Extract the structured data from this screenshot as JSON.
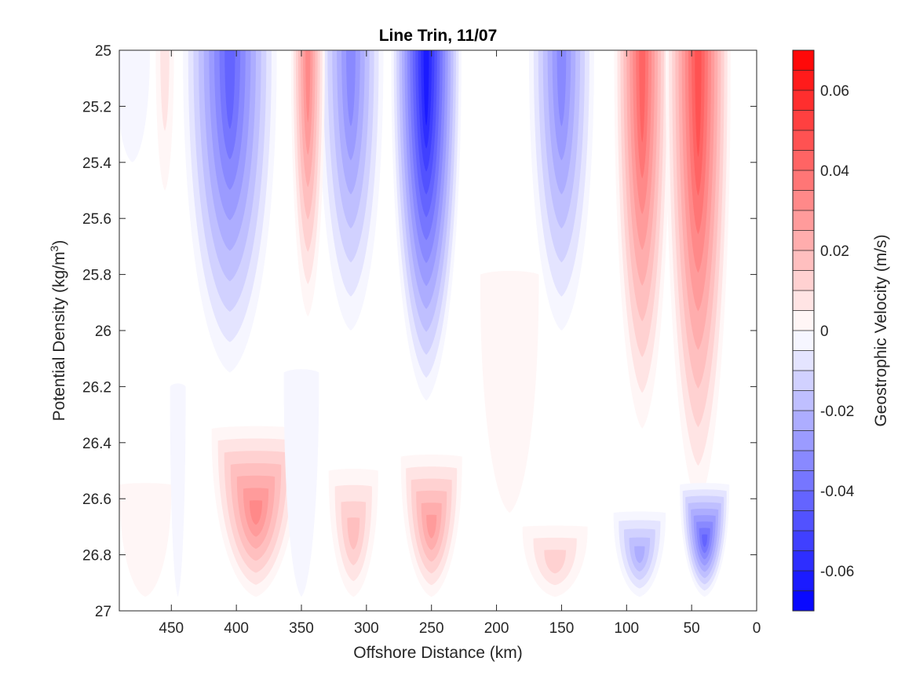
{
  "chart_data": {
    "type": "heatmap",
    "title": "Line Trin, 11/07",
    "xlabel": "Offshore Distance (km)",
    "ylabel": "Potential Density (kg/m",
    "ylabel_superscript": "3",
    "ylabel_suffix": ")",
    "xlim": [
      490,
      0
    ],
    "ylim": [
      25,
      27
    ],
    "x_reversed": true,
    "y_reversed": true,
    "x_ticks": [
      450,
      400,
      350,
      300,
      250,
      200,
      150,
      100,
      50,
      0
    ],
    "x_tick_labels": [
      "450",
      "400",
      "350",
      "300",
      "250",
      "200",
      "150",
      "100",
      "50",
      "0"
    ],
    "y_ticks": [
      25,
      25.2,
      25.4,
      25.6,
      25.8,
      26,
      26.2,
      26.4,
      26.6,
      26.8,
      27
    ],
    "y_tick_labels": [
      "25",
      "25.2",
      "25.4",
      "25.6",
      "25.8",
      "26",
      "26.2",
      "26.4",
      "26.6",
      "26.8",
      "27"
    ],
    "colorbar": {
      "label": "Geostrophic Velocity (m/s)",
      "range": [
        -0.07,
        0.07
      ],
      "levels": 28,
      "ticks": [
        0.06,
        0.04,
        0.02,
        0,
        -0.02,
        -0.04,
        -0.06
      ],
      "tick_labels": [
        "0.06",
        "0.04",
        "0.02",
        "0",
        "-0.02",
        "-0.04",
        "-0.06"
      ],
      "low_color": "#0000ff",
      "mid_color": "#ffffff",
      "high_color": "#ff0000"
    },
    "features": [
      {
        "x": 254,
        "x_left": 272,
        "x_right": 218,
        "y_top": 25.0,
        "y_bottom": 26.25,
        "peak": -0.065
      },
      {
        "x": 405,
        "x_left": 440,
        "x_right": 368,
        "y_top": 25.0,
        "y_bottom": 26.15,
        "peak": -0.045
      },
      {
        "x": 312,
        "x_left": 338,
        "x_right": 288,
        "y_top": 25.0,
        "y_bottom": 26.0,
        "peak": -0.035
      },
      {
        "x": 150,
        "x_left": 175,
        "x_right": 125,
        "y_top": 25.0,
        "y_bottom": 26.0,
        "peak": -0.035
      },
      {
        "x": 480,
        "x_left": 492,
        "x_right": 465,
        "y_top": 25.0,
        "y_bottom": 25.4,
        "peak": -0.008
      },
      {
        "x": 345,
        "x_left": 358,
        "x_right": 332,
        "y_top": 25.0,
        "y_bottom": 25.95,
        "peak": 0.035
      },
      {
        "x": 88,
        "x_left": 115,
        "x_right": 72,
        "y_top": 25.0,
        "y_bottom": 26.35,
        "peak": 0.045
      },
      {
        "x": 45,
        "x_left": 72,
        "x_right": 22,
        "y_top": 25.0,
        "y_bottom": 26.62,
        "peak": 0.05
      },
      {
        "x": 455,
        "x_left": 462,
        "x_right": 448,
        "y_top": 25.0,
        "y_bottom": 25.5,
        "peak": 0.01
      },
      {
        "x": 385,
        "x_left": 430,
        "x_right": 362,
        "y_top": 26.35,
        "y_bottom": 26.95,
        "peak": 0.035
      },
      {
        "x": 250,
        "x_left": 272,
        "x_right": 225,
        "y_top": 26.45,
        "y_bottom": 26.95,
        "peak": 0.03
      },
      {
        "x": 310,
        "x_left": 330,
        "x_right": 292,
        "y_top": 26.5,
        "y_bottom": 26.95,
        "peak": 0.02
      },
      {
        "x": 155,
        "x_left": 175,
        "x_right": 125,
        "y_top": 26.7,
        "y_bottom": 26.95,
        "peak": 0.015
      },
      {
        "x": 190,
        "x_left": 210,
        "x_right": 165,
        "y_top": 25.8,
        "y_bottom": 26.65,
        "peak": 0.008
      },
      {
        "x": 40,
        "x_left": 60,
        "x_right": 22,
        "y_top": 26.55,
        "y_bottom": 26.95,
        "peak": -0.045
      },
      {
        "x": 90,
        "x_left": 110,
        "x_right": 70,
        "y_top": 26.65,
        "y_bottom": 26.95,
        "peak": -0.025
      },
      {
        "x": 350,
        "x_left": 365,
        "x_right": 338,
        "y_top": 26.15,
        "y_bottom": 26.95,
        "peak": -0.008
      },
      {
        "x": 470,
        "x_left": 490,
        "x_right": 450,
        "y_top": 26.55,
        "y_bottom": 26.95,
        "peak": 0.008
      },
      {
        "x": 445,
        "x_left": 450,
        "x_right": 438,
        "y_top": 26.2,
        "y_bottom": 26.95,
        "peak": -0.006
      }
    ]
  }
}
